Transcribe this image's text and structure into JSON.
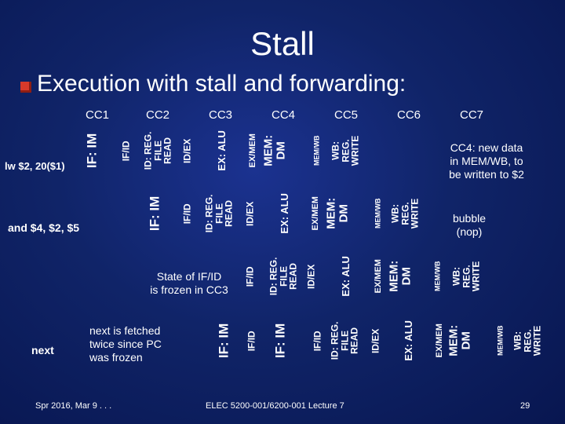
{
  "title": "Stall",
  "subtitle": "Execution with stall and forwarding:",
  "clock_cycles": [
    "CC1",
    "CC2",
    "CC3",
    "CC4",
    "CC5",
    "CC6",
    "CC7"
  ],
  "instructions": {
    "lw": "lw $2, 20($1)",
    "and": "and $4, $2, $5",
    "next": "next"
  },
  "stages": {
    "if": "IF: IM",
    "ifid": "IF/ID",
    "id_lines": [
      "ID: REG.",
      "FILE",
      "READ"
    ],
    "idex": "ID/EX",
    "ex": "EX: ALU",
    "exmem": "EX/MEM",
    "mem_lines": [
      "MEM:",
      "DM"
    ],
    "memwb": "MEM/WB",
    "wb_lines": [
      "WB:",
      "REG.",
      "WRITE"
    ]
  },
  "notes": {
    "cc4_lines": [
      "CC4: new data",
      "in MEM/WB, to",
      "be written to $2"
    ],
    "bubble_lines": [
      "bubble",
      "(nop)"
    ],
    "frozen_lines": [
      "State of IF/ID",
      "is frozen in CC3"
    ],
    "fetched_lines": [
      "next is fetched",
      "twice since PC",
      "was frozen"
    ]
  },
  "footer": {
    "date": "Spr 2016, Mar 9 . . .",
    "course": "ELEC 5200-001/6200-001 Lecture 7",
    "page": "29"
  },
  "colors": {
    "background": "#102468",
    "bullet": "#d83a2a",
    "text": "#ffffff"
  }
}
